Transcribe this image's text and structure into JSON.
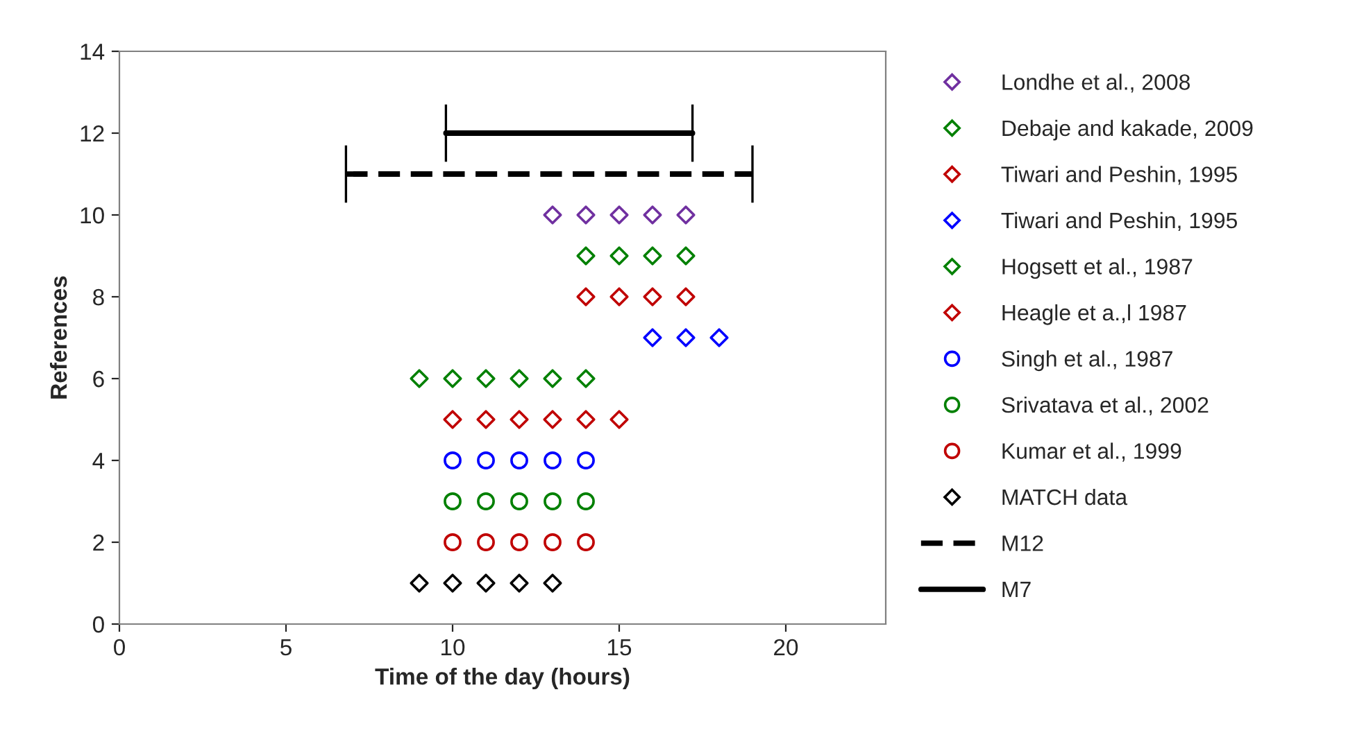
{
  "chart_data": {
    "type": "scatter",
    "xlabel": "Time of the day (hours)",
    "ylabel": "References",
    "xlim": [
      0,
      23
    ],
    "xticks": [
      0,
      5,
      10,
      15,
      20
    ],
    "ylim": [
      0,
      14
    ],
    "yticks": [
      0,
      2,
      4,
      6,
      8,
      10,
      12,
      14
    ],
    "grid": false,
    "legend": "right",
    "series": [
      {
        "name": "Londhe et al., 2008",
        "color": "#7030a0",
        "marker": "diamond",
        "x": [
          13,
          14,
          15,
          16,
          17
        ],
        "values": [
          10,
          10,
          10,
          10,
          10
        ]
      },
      {
        "name": "Debaje and kakade, 2009",
        "color": "#008000",
        "marker": "diamond",
        "x": [
          14,
          15,
          16,
          17
        ],
        "values": [
          9,
          9,
          9,
          9
        ]
      },
      {
        "name": "Tiwari and Peshin, 1995",
        "color": "#c00000",
        "marker": "diamond",
        "x": [
          14,
          15,
          16,
          17
        ],
        "values": [
          8,
          8,
          8,
          8
        ]
      },
      {
        "name": "Tiwari and Peshin, 1995",
        "color": "#0000ff",
        "marker": "diamond",
        "x": [
          16,
          17,
          18
        ],
        "values": [
          7,
          7,
          7
        ]
      },
      {
        "name": "Hogsett et al., 1987",
        "color": "#008000",
        "marker": "diamond",
        "x": [
          9,
          10,
          11,
          12,
          13,
          14
        ],
        "values": [
          6,
          6,
          6,
          6,
          6,
          6
        ]
      },
      {
        "name": "Heagle et a.,l 1987",
        "color": "#c00000",
        "marker": "diamond",
        "x": [
          10,
          11,
          12,
          13,
          14,
          15
        ],
        "values": [
          5,
          5,
          5,
          5,
          5,
          5
        ]
      },
      {
        "name": "Singh et al., 1987",
        "color": "#0000ff",
        "marker": "circle",
        "x": [
          10,
          11,
          12,
          13,
          14
        ],
        "values": [
          4,
          4,
          4,
          4,
          4
        ]
      },
      {
        "name": "Srivatava et al., 2002",
        "color": "#008000",
        "marker": "circle",
        "x": [
          10,
          11,
          12,
          13,
          14
        ],
        "values": [
          3,
          3,
          3,
          3,
          3
        ]
      },
      {
        "name": "Kumar et al., 1999",
        "color": "#c00000",
        "marker": "circle",
        "x": [
          10,
          11,
          12,
          13,
          14
        ],
        "values": [
          2,
          2,
          2,
          2,
          2
        ]
      },
      {
        "name": "MATCH data",
        "color": "#000000",
        "marker": "diamond",
        "x": [
          9,
          10,
          11,
          12,
          13
        ],
        "values": [
          1,
          1,
          1,
          1,
          1
        ]
      },
      {
        "name": "M12",
        "type": "line",
        "color": "#000000",
        "line_style": "dashed",
        "x": [
          6.8,
          19
        ],
        "values": [
          11,
          11
        ],
        "errors": [
          0.7,
          0.7
        ]
      },
      {
        "name": "M7",
        "type": "line",
        "color": "#000000",
        "line_style": "solid",
        "x": [
          9.8,
          17.2
        ],
        "values": [
          12,
          12
        ],
        "errors": [
          0.7,
          0.7
        ]
      }
    ]
  }
}
